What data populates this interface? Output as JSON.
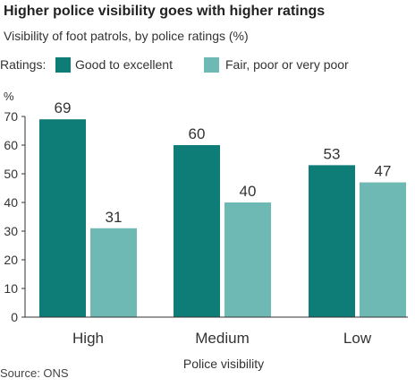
{
  "header": {
    "title": "Higher police visibility goes with higher ratings",
    "subtitle": "Visibility of foot patrols, by police ratings (%)"
  },
  "legend": {
    "prefix": "Ratings:",
    "items": [
      {
        "label": "Good to excellent",
        "color": "#0e7c77"
      },
      {
        "label": "Fair, poor or very poor",
        "color": "#6fb9b4"
      }
    ]
  },
  "footer": {
    "source": "Source: ONS"
  },
  "chart_data": {
    "type": "bar",
    "categories": [
      "High",
      "Medium",
      "Low"
    ],
    "series": [
      {
        "name": "Good to excellent",
        "values": [
          69,
          60,
          53
        ],
        "color": "#0e7c77"
      },
      {
        "name": "Fair, poor or very poor",
        "values": [
          31,
          40,
          47
        ],
        "color": "#6fb9b4"
      }
    ],
    "xlabel": "Police visibility",
    "ylabel": "%",
    "ylim": [
      0,
      70
    ],
    "yticks": [
      0,
      10,
      20,
      30,
      40,
      50,
      60,
      70
    ],
    "grid": false,
    "legend_position": "top"
  }
}
